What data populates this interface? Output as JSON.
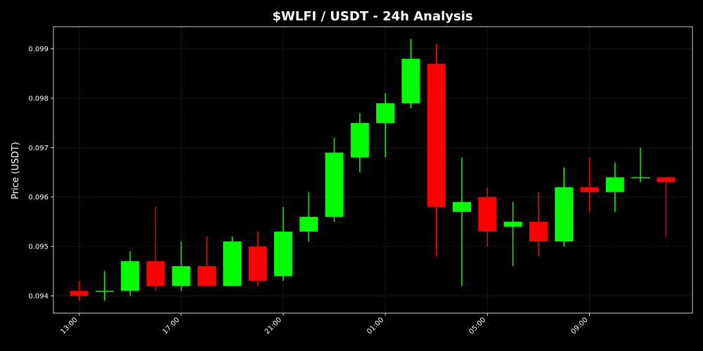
{
  "chart_data": {
    "type": "candlestick",
    "title": "$WLFI / USDT - 24h Analysis",
    "xlabel": "",
    "ylabel": "Price (USDT)",
    "ylim": [
      0.09365,
      0.09945
    ],
    "yticks": [
      0.094,
      0.095,
      0.096,
      0.097,
      0.098,
      0.099
    ],
    "ytick_labels": [
      "0.094",
      "0.095",
      "0.096",
      "0.097",
      "0.098",
      "0.099"
    ],
    "xticks": [
      0,
      4,
      8,
      12,
      16,
      20
    ],
    "xtick_labels": [
      "13:00",
      "17:00",
      "21:00",
      "01:00",
      "05:00",
      "09:00"
    ],
    "grid": true,
    "up_color": "#00ff00",
    "down_color": "#ff0000",
    "background": "#000000",
    "candles": [
      {
        "open": 0.0941,
        "high": 0.0943,
        "low": 0.0939,
        "close": 0.094
      },
      {
        "open": 0.0941,
        "high": 0.0945,
        "low": 0.0939,
        "close": 0.0941
      },
      {
        "open": 0.0941,
        "high": 0.0949,
        "low": 0.094,
        "close": 0.0947
      },
      {
        "open": 0.0947,
        "high": 0.0958,
        "low": 0.0941,
        "close": 0.0942
      },
      {
        "open": 0.0942,
        "high": 0.0951,
        "low": 0.0941,
        "close": 0.0946
      },
      {
        "open": 0.0946,
        "high": 0.0952,
        "low": 0.0942,
        "close": 0.0942
      },
      {
        "open": 0.0942,
        "high": 0.0952,
        "low": 0.0942,
        "close": 0.0951
      },
      {
        "open": 0.095,
        "high": 0.0953,
        "low": 0.0942,
        "close": 0.0943
      },
      {
        "open": 0.0944,
        "high": 0.0958,
        "low": 0.0943,
        "close": 0.0953
      },
      {
        "open": 0.0953,
        "high": 0.0961,
        "low": 0.0951,
        "close": 0.0956
      },
      {
        "open": 0.0956,
        "high": 0.0972,
        "low": 0.0955,
        "close": 0.0969
      },
      {
        "open": 0.0968,
        "high": 0.0977,
        "low": 0.0965,
        "close": 0.0975
      },
      {
        "open": 0.0975,
        "high": 0.0981,
        "low": 0.0968,
        "close": 0.0979
      },
      {
        "open": 0.0979,
        "high": 0.0992,
        "low": 0.0978,
        "close": 0.0988
      },
      {
        "open": 0.0987,
        "high": 0.0991,
        "low": 0.0948,
        "close": 0.0958
      },
      {
        "open": 0.0957,
        "high": 0.0968,
        "low": 0.0942,
        "close": 0.0959
      },
      {
        "open": 0.096,
        "high": 0.0962,
        "low": 0.095,
        "close": 0.0953
      },
      {
        "open": 0.0954,
        "high": 0.0959,
        "low": 0.0946,
        "close": 0.0955
      },
      {
        "open": 0.0955,
        "high": 0.0961,
        "low": 0.0948,
        "close": 0.0951
      },
      {
        "open": 0.0951,
        "high": 0.0966,
        "low": 0.095,
        "close": 0.0962
      },
      {
        "open": 0.0962,
        "high": 0.0968,
        "low": 0.0957,
        "close": 0.0961
      },
      {
        "open": 0.0961,
        "high": 0.0967,
        "low": 0.0957,
        "close": 0.0964
      },
      {
        "open": 0.0964,
        "high": 0.097,
        "low": 0.0963,
        "close": 0.0964
      },
      {
        "open": 0.0964,
        "high": 0.0964,
        "low": 0.0952,
        "close": 0.0963
      }
    ]
  }
}
